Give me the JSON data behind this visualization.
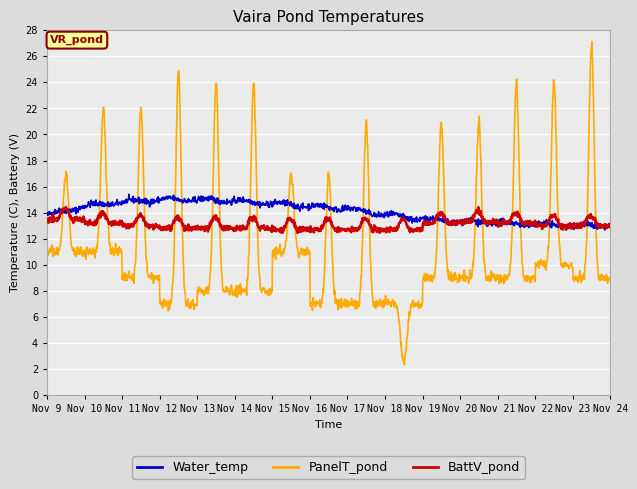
{
  "title": "Vaira Pond Temperatures",
  "xlabel": "Time",
  "ylabel": "Temperature (C), Battery (V)",
  "ylim": [
    0,
    28
  ],
  "yticks": [
    0,
    2,
    4,
    6,
    8,
    10,
    12,
    14,
    16,
    18,
    20,
    22,
    24,
    26,
    28
  ],
  "xtick_labels": [
    "Nov 9",
    "Nov 10",
    "Nov 11",
    "Nov 12",
    "Nov 13",
    "Nov 14",
    "Nov 15",
    "Nov 16",
    "Nov 17",
    "Nov 18",
    "Nov 19",
    "Nov 20",
    "Nov 21",
    "Nov 22",
    "Nov 23",
    "Nov 24"
  ],
  "background_color": "#dcdcdc",
  "plot_bg_color": "#ebebeb",
  "water_temp_color": "#0000cc",
  "panel_temp_color": "#ffaa00",
  "batt_color": "#cc0000",
  "water_temp_lw": 1.2,
  "panel_temp_lw": 1.2,
  "batt_lw": 1.8,
  "annotation_text": "VR_pond",
  "annotation_color": "#8b0000",
  "annotation_bg": "#ffff99",
  "annotation_border": "#8b0000",
  "title_fontsize": 11,
  "axis_fontsize": 8,
  "tick_fontsize": 7
}
